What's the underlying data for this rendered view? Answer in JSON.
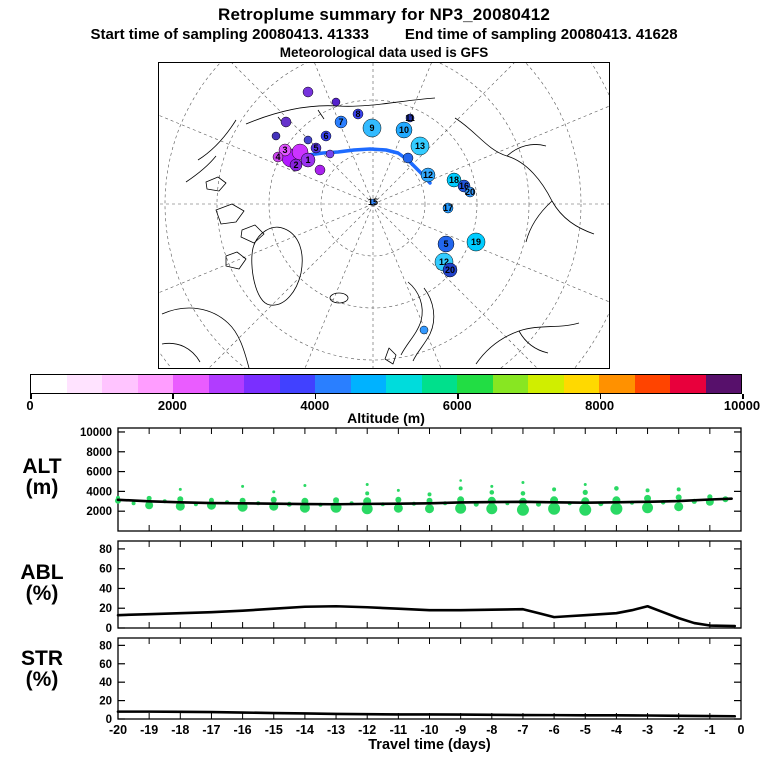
{
  "header": {
    "title": "Retroplume summary for NP3_20080412",
    "start_text": "Start time of sampling 20080413. 41333",
    "end_text": "End time of sampling 20080413. 41628",
    "met": "Meteorological data used is GFS"
  },
  "colorbar": {
    "label": "Altitude (m)",
    "ticks": [
      "0",
      "2000",
      "4000",
      "6000",
      "8000",
      "10000"
    ],
    "colors": [
      "#ffffff",
      "#ffe3ff",
      "#ffc4ff",
      "#ff9dff",
      "#ea5cff",
      "#b13cff",
      "#7a2fff",
      "#4141ff",
      "#2a7fff",
      "#00b2ff",
      "#00dcdc",
      "#00e08c",
      "#22dd44",
      "#88e622",
      "#d0ee00",
      "#ffd900",
      "#ff9100",
      "#ff4400",
      "#e8003c",
      "#57106b"
    ]
  },
  "colors": {
    "trajectory": "#1e6bff",
    "dot_green": "#2ad964",
    "line": "#000000",
    "marker_label": "#12125e"
  },
  "map": {
    "trajectory": [
      [
        150,
        93
      ],
      [
        165,
        91
      ],
      [
        180,
        90
      ],
      [
        196,
        88
      ],
      [
        212,
        87
      ],
      [
        228,
        88
      ],
      [
        240,
        91
      ],
      [
        250,
        98
      ],
      [
        258,
        106
      ],
      [
        266,
        114
      ],
      [
        272,
        121
      ]
    ],
    "markers": [
      {
        "x": 133,
        "y": 96,
        "r": 9,
        "c": "#b31aff",
        "label": ""
      },
      {
        "x": 142,
        "y": 90,
        "r": 8,
        "c": "#cc33ff",
        "label": ""
      },
      {
        "x": 150,
        "y": 98,
        "r": 7,
        "c": "#9933ee",
        "label": "1"
      },
      {
        "x": 127,
        "y": 88,
        "r": 6,
        "c": "#e055ff",
        "label": "3"
      },
      {
        "x": 138,
        "y": 103,
        "r": 6,
        "c": "#8822dd",
        "label": "2"
      },
      {
        "x": 120,
        "y": 95,
        "r": 5,
        "c": "#cc44ee",
        "label": "4"
      },
      {
        "x": 158,
        "y": 86,
        "r": 5,
        "c": "#5533dd",
        "label": "5"
      },
      {
        "x": 150,
        "y": 78,
        "r": 4,
        "c": "#4444cc",
        "label": ""
      },
      {
        "x": 168,
        "y": 74,
        "r": 5,
        "c": "#3a43f0",
        "label": "6"
      },
      {
        "x": 183,
        "y": 60,
        "r": 6,
        "c": "#2b7fff",
        "label": "7"
      },
      {
        "x": 200,
        "y": 52,
        "r": 5,
        "c": "#3a43f0",
        "label": "8"
      },
      {
        "x": 214,
        "y": 66,
        "r": 9,
        "c": "#33bbff",
        "label": "9"
      },
      {
        "x": 246,
        "y": 68,
        "r": 8,
        "c": "#22aaff",
        "label": "10"
      },
      {
        "x": 252,
        "y": 56,
        "r": 4,
        "c": "#2233aa",
        "label": "11"
      },
      {
        "x": 262,
        "y": 84,
        "r": 9,
        "c": "#33ccff",
        "label": "13"
      },
      {
        "x": 250,
        "y": 96,
        "r": 5,
        "c": "#2266ee",
        "label": ""
      },
      {
        "x": 270,
        "y": 113,
        "r": 7,
        "c": "#33aaff",
        "label": "12"
      },
      {
        "x": 296,
        "y": 118,
        "r": 7,
        "c": "#00ccff",
        "label": "18"
      },
      {
        "x": 306,
        "y": 124,
        "r": 6,
        "c": "#2255dd",
        "label": "16"
      },
      {
        "x": 312,
        "y": 130,
        "r": 5,
        "c": "#3399ff",
        "label": "20"
      },
      {
        "x": 290,
        "y": 146,
        "r": 5,
        "c": "#2299ff",
        "label": "17"
      },
      {
        "x": 215,
        "y": 140,
        "r": 3,
        "c": "#3388ff",
        "label": "15"
      },
      {
        "x": 288,
        "y": 182,
        "r": 8,
        "c": "#2266ee",
        "label": "5"
      },
      {
        "x": 318,
        "y": 180,
        "r": 9,
        "c": "#00ccff",
        "label": "19"
      },
      {
        "x": 286,
        "y": 200,
        "r": 9,
        "c": "#33ccff",
        "label": "12"
      },
      {
        "x": 292,
        "y": 208,
        "r": 7,
        "c": "#2244cc",
        "label": "20"
      },
      {
        "x": 266,
        "y": 268,
        "r": 4,
        "c": "#3399ff",
        "label": ""
      },
      {
        "x": 178,
        "y": 40,
        "r": 4,
        "c": "#5522cc",
        "label": ""
      },
      {
        "x": 150,
        "y": 30,
        "r": 5,
        "c": "#7733dd",
        "label": ""
      },
      {
        "x": 128,
        "y": 60,
        "r": 5,
        "c": "#6633cc",
        "label": ""
      },
      {
        "x": 118,
        "y": 74,
        "r": 4,
        "c": "#4433bb",
        "label": ""
      },
      {
        "x": 162,
        "y": 108,
        "r": 5,
        "c": "#aa22ee",
        "label": ""
      },
      {
        "x": 172,
        "y": 92,
        "r": 4,
        "c": "#7744ee",
        "label": ""
      }
    ]
  },
  "panel_labels": [
    {
      "l1": "ALT",
      "l2": "(m)"
    },
    {
      "l1": "ABL",
      "l2": "(%)"
    },
    {
      "l1": "STR",
      "l2": "(%)"
    }
  ],
  "xaxis": {
    "label": "Travel time (days)",
    "min": -20,
    "max": 0,
    "ticks": [
      -20,
      -19,
      -18,
      -17,
      -16,
      -15,
      -14,
      -13,
      -12,
      -11,
      -10,
      -9,
      -8,
      -7,
      -6,
      -5,
      -4,
      -3,
      -2,
      -1,
      0
    ]
  },
  "chart_data": [
    {
      "type": "scatter",
      "name": "ALT",
      "ylabel": "ALT (m)",
      "xlabel": "Travel time (days)",
      "ylim": [
        0,
        10400
      ],
      "yticks": [
        2000,
        4000,
        6000,
        8000,
        10000
      ],
      "line_x": [
        -20,
        -19,
        -18,
        -17,
        -16,
        -15,
        -14,
        -13,
        -12,
        -11,
        -10,
        -9,
        -8,
        -7,
        -6,
        -5,
        -4,
        -3,
        -2,
        -1,
        -0.3
      ],
      "line_y": [
        3150,
        3000,
        2900,
        2820,
        2800,
        2760,
        2720,
        2700,
        2740,
        2760,
        2800,
        2880,
        2920,
        2950,
        2900,
        2860,
        2900,
        2950,
        3020,
        3180,
        3260
      ],
      "dots": [
        [
          -20,
          3050,
          3
        ],
        [
          -20,
          3350,
          2
        ],
        [
          -19.5,
          2800,
          2
        ],
        [
          -19,
          2600,
          4
        ],
        [
          -19,
          3300,
          2.5
        ],
        [
          -18.5,
          3000,
          2
        ],
        [
          -18,
          2500,
          4.5
        ],
        [
          -18,
          3200,
          3
        ],
        [
          -18,
          4200,
          1.5
        ],
        [
          -17.5,
          2700,
          2
        ],
        [
          -17,
          2600,
          4.5
        ],
        [
          -17,
          3100,
          2.5
        ],
        [
          -16.5,
          2900,
          2
        ],
        [
          -16,
          2450,
          5
        ],
        [
          -16,
          3050,
          3
        ],
        [
          -16,
          4500,
          1.5
        ],
        [
          -15.5,
          2800,
          2
        ],
        [
          -15,
          2500,
          4.5
        ],
        [
          -15,
          3150,
          3
        ],
        [
          -15,
          3950,
          1.5
        ],
        [
          -14.5,
          2700,
          2.5
        ],
        [
          -14,
          2350,
          5
        ],
        [
          -14,
          3000,
          3.5
        ],
        [
          -14,
          4600,
          1.5
        ],
        [
          -13.5,
          2650,
          2
        ],
        [
          -13,
          2400,
          5.5
        ],
        [
          -13,
          3100,
          3
        ],
        [
          -12.5,
          2800,
          2
        ],
        [
          -12,
          2250,
          5.5
        ],
        [
          -12,
          3000,
          4
        ],
        [
          -12,
          3800,
          2
        ],
        [
          -12,
          4700,
          1.5
        ],
        [
          -11.5,
          2700,
          2
        ],
        [
          -11,
          2300,
          4.5
        ],
        [
          -11,
          3150,
          3
        ],
        [
          -11,
          4100,
          1.5
        ],
        [
          -10.5,
          2750,
          2
        ],
        [
          -10,
          2250,
          4.5
        ],
        [
          -10,
          3050,
          3
        ],
        [
          -10,
          3700,
          2
        ],
        [
          -9.5,
          2800,
          2
        ],
        [
          -9,
          2300,
          5.5
        ],
        [
          -9,
          3150,
          3.5
        ],
        [
          -9,
          4300,
          2
        ],
        [
          -9,
          5100,
          1.3
        ],
        [
          -8.5,
          2700,
          2.5
        ],
        [
          -8,
          2250,
          5.5
        ],
        [
          -8,
          3050,
          4
        ],
        [
          -8,
          3900,
          2.3
        ],
        [
          -8,
          4500,
          1.5
        ],
        [
          -7.5,
          2800,
          2
        ],
        [
          -7,
          2150,
          6
        ],
        [
          -7,
          2950,
          4
        ],
        [
          -7,
          3800,
          2.3
        ],
        [
          -7,
          4900,
          1.5
        ],
        [
          -6.5,
          2700,
          2.5
        ],
        [
          -6,
          2250,
          6
        ],
        [
          -6,
          3100,
          4
        ],
        [
          -6,
          4200,
          2
        ],
        [
          -5.5,
          2800,
          2
        ],
        [
          -5,
          2150,
          6
        ],
        [
          -5,
          3000,
          4
        ],
        [
          -5,
          3900,
          2.6
        ],
        [
          -5,
          4700,
          1.5
        ],
        [
          -4.5,
          2750,
          2.5
        ],
        [
          -4,
          2250,
          6
        ],
        [
          -4,
          3100,
          4
        ],
        [
          -4,
          4300,
          2.3
        ],
        [
          -3.5,
          2850,
          2
        ],
        [
          -3,
          2350,
          5.5
        ],
        [
          -3,
          3300,
          3.5
        ],
        [
          -3,
          4100,
          2
        ],
        [
          -2.5,
          2900,
          2.3
        ],
        [
          -2,
          2450,
          4.5
        ],
        [
          -2,
          3400,
          3
        ],
        [
          -2,
          4200,
          2
        ],
        [
          -1.5,
          3000,
          2.6
        ],
        [
          -1,
          2950,
          4
        ],
        [
          -1,
          3450,
          2.6
        ],
        [
          -0.5,
          3200,
          3
        ]
      ]
    },
    {
      "type": "line",
      "name": "ABL",
      "ylabel": "ABL (%)",
      "ylim": [
        0,
        88
      ],
      "yticks": [
        0,
        20,
        40,
        60,
        80
      ],
      "line_x": [
        -20,
        -19,
        -18,
        -17,
        -16,
        -15,
        -14,
        -13,
        -12,
        -11,
        -10,
        -9,
        -8,
        -7,
        -6.5,
        -6,
        -5.5,
        -5,
        -4.5,
        -4,
        -3.5,
        -3,
        -2.5,
        -2,
        -1.5,
        -1,
        -0.2
      ],
      "line_y": [
        13,
        14,
        15,
        16,
        17.5,
        19.5,
        21.5,
        22,
        21,
        19.5,
        18,
        18,
        18.5,
        19,
        15,
        11,
        12,
        13,
        14,
        15,
        18,
        22,
        16,
        10,
        5,
        2.5,
        2
      ]
    },
    {
      "type": "line",
      "name": "STR",
      "ylabel": "STR (%)",
      "ylim": [
        0,
        88
      ],
      "yticks": [
        0,
        20,
        40,
        60,
        80
      ],
      "line_x": [
        -20,
        -19,
        -18,
        -17,
        -16,
        -15,
        -14,
        -13,
        -12,
        -11,
        -10,
        -9,
        -8,
        -7,
        -6,
        -5,
        -4,
        -3,
        -2,
        -1,
        -0.2
      ],
      "line_y": [
        8,
        8,
        7.8,
        7.5,
        7,
        6.5,
        6,
        5.5,
        5.2,
        5,
        5,
        4.8,
        4.5,
        4.3,
        4.2,
        4,
        4,
        3.8,
        3.5,
        3.2,
        3
      ]
    }
  ]
}
